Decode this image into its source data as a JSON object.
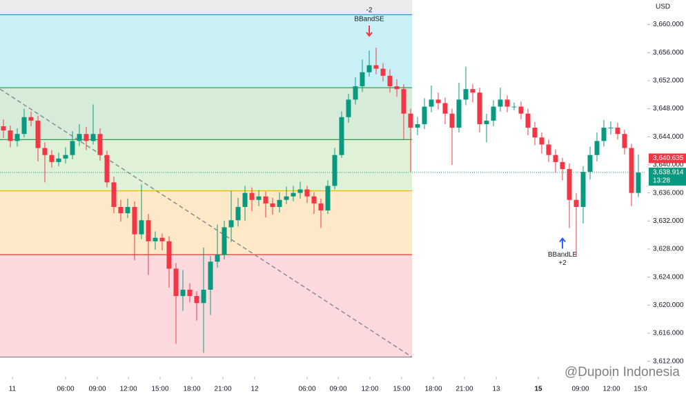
{
  "chart_data": {
    "type": "candlestick",
    "currency": "USD",
    "up_color": "#089981",
    "down_color": "#f23645",
    "xlim": [
      -0.5,
      93
    ],
    "ylim": [
      3609.9,
      3663.5
    ],
    "yticks": [
      {
        "value": 3612,
        "label": "3,612.000"
      },
      {
        "value": 3616,
        "label": "3,616.000"
      },
      {
        "value": 3620,
        "label": "3,620.000"
      },
      {
        "value": 3624,
        "label": "3,624.000"
      },
      {
        "value": 3628,
        "label": "3,628.000"
      },
      {
        "value": 3632,
        "label": "3,632.000"
      },
      {
        "value": 3636,
        "label": "3,636.000"
      },
      {
        "value": 3640,
        "label": "3,640.000"
      },
      {
        "value": 3644,
        "label": "3,644.000"
      },
      {
        "value": 3648,
        "label": "3,648.000"
      },
      {
        "value": 3652,
        "label": "3,652.000"
      },
      {
        "value": 3656,
        "label": "3,656.000"
      },
      {
        "value": 3660,
        "label": "3,660.000"
      }
    ],
    "xticks": [
      {
        "value": 1.3,
        "label": "11"
      },
      {
        "value": 9,
        "label": "06:00"
      },
      {
        "value": 13.6,
        "label": "09:00"
      },
      {
        "value": 18.1,
        "label": "12:00"
      },
      {
        "value": 22.7,
        "label": "15:00"
      },
      {
        "value": 27.3,
        "label": "18:00"
      },
      {
        "value": 31.8,
        "label": "21:00"
      },
      {
        "value": 36.4,
        "label": "12"
      },
      {
        "value": 44,
        "label": "06:00"
      },
      {
        "value": 48.5,
        "label": "09:00"
      },
      {
        "value": 53.1,
        "label": "12:00"
      },
      {
        "value": 57.7,
        "label": "15:00"
      },
      {
        "value": 62.3,
        "label": "18:00"
      },
      {
        "value": 66.8,
        "label": "21:00"
      },
      {
        "value": 71.4,
        "label": "13"
      },
      {
        "value": 77.5,
        "label": "15"
      },
      {
        "value": 83.6,
        "label": "09:00"
      },
      {
        "value": 88.1,
        "label": "12:00"
      },
      {
        "value": 92.3,
        "label": "15:0"
      }
    ],
    "open": [
      3645.5,
      3644.9,
      3643.4,
      3644.4,
      3646.8,
      3646.3,
      3642.4,
      3641.4,
      3640.4,
      3640.9,
      3641.4,
      3643.4,
      3644.4,
      3643.4,
      3644.4,
      3641.4,
      3637.5,
      3634.0,
      3633.1,
      3634.0,
      3630.1,
      3632.1,
      3629.1,
      3629.6,
      3629.1,
      3625.2,
      3621.3,
      3622.2,
      3621.3,
      3620.3,
      3622.2,
      3626.2,
      3627.2,
      3631.1,
      3632.1,
      3634.0,
      3636.0,
      3635.0,
      3635.5,
      3634.5,
      3634.0,
      3635.0,
      3635.5,
      3636.0,
      3636.5,
      3635.5,
      3634.5,
      3633.5,
      3637.0,
      3641.4,
      3646.8,
      3649.3,
      3651.2,
      3653.2,
      3654.2,
      3653.7,
      3652.7,
      3651.2,
      3650.8,
      3647.3,
      3645.3,
      3645.8,
      3648.3,
      3649.3,
      3648.8,
      3647.3,
      3645.3,
      3649.3,
      3650.8,
      3650.3,
      3645.8,
      3646.3,
      3648.3,
      3649.3,
      3648.3,
      3648.3,
      3647.3,
      3645.3,
      3643.9,
      3642.9,
      3641.4,
      3640.4,
      3639.4,
      3635.0,
      3634.0,
      3639.0,
      3641.4,
      3643.4,
      3645.3,
      3645.3,
      3644.4,
      3642.4,
      3636.0
    ],
    "high": [
      3646.5,
      3645.6,
      3645.2,
      3648.0,
      3647.6,
      3647.0,
      3643.2,
      3642.1,
      3641.7,
      3642.5,
      3644.8,
      3645.8,
      3645.4,
      3648.6,
      3645.2,
      3642.0,
      3638.3,
      3635.0,
      3635.2,
      3634.8,
      3637.2,
      3633.0,
      3630.5,
      3630.2,
      3629.8,
      3626.0,
      3625.0,
      3623.1,
      3622.0,
      3628.2,
      3627.0,
      3631.5,
      3632.0,
      3636.3,
      3635.3,
      3637.0,
      3636.8,
      3636.4,
      3636.2,
      3635.3,
      3636.1,
      3636.9,
      3637.0,
      3637.6,
      3637.0,
      3636.1,
      3635.2,
      3637.8,
      3642.4,
      3647.6,
      3650.1,
      3652.5,
      3655.0,
      3656.3,
      3656.7,
      3654.5,
      3653.6,
      3652.2,
      3651.5,
      3648.0,
      3646.8,
      3649.5,
      3651.3,
      3650.3,
      3649.6,
      3648.0,
      3651.7,
      3654.0,
      3651.5,
      3651.0,
      3647.3,
      3649.2,
      3651.0,
      3649.9,
      3648.9,
      3649.0,
      3648.0,
      3646.1,
      3644.6,
      3643.6,
      3642.2,
      3641.0,
      3640.2,
      3636.0,
      3639.8,
      3642.6,
      3644.6,
      3646.4,
      3646.2,
      3646.0,
      3645.0,
      3643.0,
      3641.5
    ],
    "low": [
      3643.8,
      3642.5,
      3642.6,
      3643.9,
      3645.5,
      3640.5,
      3637.5,
      3639.6,
      3639.8,
      3640.2,
      3640.8,
      3642.7,
      3642.1,
      3642.9,
      3640.6,
      3636.8,
      3633.1,
      3631.9,
      3632.4,
      3626.4,
      3629.4,
      3624.3,
      3627.9,
      3627.8,
      3622.5,
      3614.5,
      3619.2,
      3620.4,
      3617.8,
      3613.2,
      3618.6,
      3625.3,
      3626.5,
      3629.0,
      3631.2,
      3632.0,
      3633.4,
      3634.1,
      3632.5,
      3632.9,
      3633.2,
      3634.4,
      3634.8,
      3635.2,
      3634.6,
      3633.0,
      3631.0,
      3633.0,
      3636.5,
      3641.0,
      3646.0,
      3648.6,
      3650.4,
      3652.6,
      3652.9,
      3651.9,
      3650.3,
      3649.7,
      3643.6,
      3639.0,
      3644.2,
      3645.1,
      3647.5,
      3647.9,
      3645.8,
      3640.0,
      3644.6,
      3648.5,
      3648.9,
      3644.6,
      3643.2,
      3645.5,
      3647.6,
      3647.5,
      3647.8,
      3646.5,
      3644.2,
      3642.8,
      3641.6,
      3640.4,
      3638.9,
      3637.8,
      3631.0,
      3627.0,
      3631.6,
      3637.9,
      3640.5,
      3642.6,
      3644.3,
      3643.6,
      3641.5,
      3634.1,
      3635.4
    ],
    "close": [
      3644.9,
      3643.4,
      3644.4,
      3646.8,
      3646.3,
      3642.4,
      3641.4,
      3640.4,
      3640.9,
      3641.4,
      3643.4,
      3644.4,
      3643.4,
      3644.4,
      3641.4,
      3637.5,
      3634.0,
      3633.1,
      3634.0,
      3630.1,
      3632.1,
      3629.1,
      3629.6,
      3629.1,
      3625.2,
      3621.3,
      3622.2,
      3621.3,
      3620.3,
      3622.2,
      3626.2,
      3627.2,
      3631.1,
      3632.1,
      3634.0,
      3636.0,
      3635.0,
      3635.5,
      3634.5,
      3634.0,
      3635.0,
      3635.5,
      3636.0,
      3636.5,
      3635.5,
      3634.5,
      3633.5,
      3637.0,
      3641.4,
      3646.8,
      3649.3,
      3651.2,
      3653.2,
      3654.2,
      3653.7,
      3652.7,
      3651.2,
      3650.8,
      3647.3,
      3645.3,
      3645.8,
      3648.3,
      3649.3,
      3648.8,
      3647.3,
      3645.3,
      3649.3,
      3650.8,
      3650.3,
      3645.8,
      3646.3,
      3648.3,
      3649.3,
      3648.3,
      3648.3,
      3647.3,
      3645.3,
      3643.9,
      3642.9,
      3641.4,
      3640.4,
      3639.4,
      3635.0,
      3634.0,
      3639.0,
      3641.4,
      3643.4,
      3645.3,
      3645.3,
      3644.4,
      3642.4,
      3636.0,
      3638.9
    ],
    "zone_end_index": 59.2,
    "levels": [
      {
        "value": 3661.4,
        "color": "#2196f3",
        "fill": "#c9f1f5"
      },
      {
        "value": 3651.0,
        "color": "#2e9e4a",
        "fill": "#d6ecd9"
      },
      {
        "value": 3643.6,
        "color": "#2e9e4a",
        "fill": "#dff2d8"
      },
      {
        "value": 3636.3,
        "color": "#f5a623",
        "fill": "#fde8c8"
      },
      {
        "value": 3627.2,
        "color": "#e53935",
        "fill": "#fbd9dd"
      },
      {
        "value": 3612.6,
        "color": "#787b86",
        "fill": null
      }
    ],
    "trendline": {
      "start": [
        -0.5,
        3650.8
      ],
      "end": [
        59.2,
        3612.6
      ],
      "color": "#8a8a8a"
    },
    "signals": [
      {
        "index": 53,
        "price": 3657.3,
        "label": "BBandSE",
        "qty": "-2",
        "side": "sell",
        "color": "#f23645"
      },
      {
        "index": 81,
        "price": 3630.6,
        "label": "BBandLE",
        "qty": "+2",
        "side": "buy",
        "color": "#2962ff"
      }
    ],
    "price_labels": [
      {
        "value": 3640.635,
        "label": "3,640.635",
        "color": "#f23645"
      },
      {
        "value": 3638.914,
        "label": "3,638.914",
        "color": "#089981",
        "countdown": "13:28"
      }
    ],
    "watermark": "@Dupoin Indonesia"
  }
}
